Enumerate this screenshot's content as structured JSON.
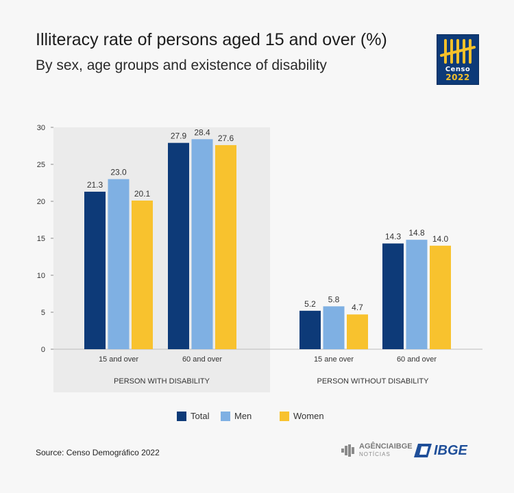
{
  "header": {
    "title": "Illiteracy rate of persons aged 15 and over (%)",
    "subtitle": "By sex, age groups and existence of disability"
  },
  "logo": {
    "line1": "Censo",
    "line2": "2022",
    "icon": "censo-tally-icon"
  },
  "footer": {
    "source": "Source: Censo Demográfico 2022",
    "agencia_top": "AGÊNCIAIBGE",
    "agencia_bottom": "NOTÍCIAS",
    "ibge": "IBGE"
  },
  "colors": {
    "total": "#0d3a78",
    "men": "#7fb0e3",
    "women": "#f8c22e",
    "panel": "#ebebeb",
    "brand": "#1f4f99"
  },
  "chart_data": {
    "type": "bar",
    "ylim": [
      0,
      30
    ],
    "yticks": [
      0,
      5,
      10,
      15,
      20,
      25,
      30
    ],
    "series_order": [
      "Total",
      "Men",
      "Women"
    ],
    "legend": [
      {
        "key": "total",
        "name": "Total"
      },
      {
        "key": "men",
        "name": "Men"
      },
      {
        "key": "women",
        "name": "Women"
      }
    ],
    "groups": [
      {
        "label": "PERSON WITH DISABILITY",
        "shaded": true,
        "categories": [
          {
            "label": "15 and over",
            "values": [
              21.3,
              23.0,
              20.1
            ]
          },
          {
            "label": "60 and over",
            "values": [
              27.9,
              28.4,
              27.6
            ]
          }
        ]
      },
      {
        "label": "PERSON WITHOUT DISABILITY",
        "shaded": false,
        "categories": [
          {
            "label": "15 ane over",
            "values": [
              5.2,
              5.8,
              4.7
            ]
          },
          {
            "label": "60 and over",
            "values": [
              14.3,
              14.8,
              14.0
            ]
          }
        ]
      }
    ]
  }
}
